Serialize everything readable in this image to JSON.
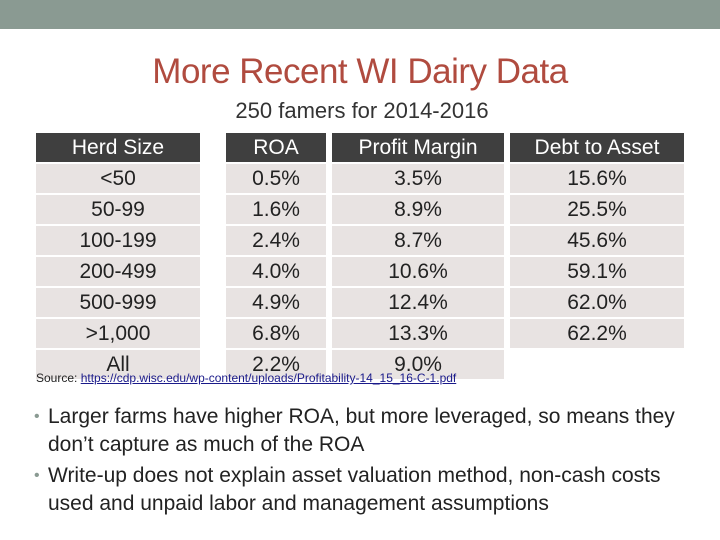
{
  "title": "More Recent WI Dairy Data",
  "subtitle": "250 famers for 2014-2016",
  "table": {
    "headers": [
      "Herd Size",
      "ROA",
      "Profit Margin",
      "Debt to Asset"
    ],
    "rows": [
      [
        "<50",
        "0.5%",
        "3.5%",
        "15.6%"
      ],
      [
        "50-99",
        "1.6%",
        "8.9%",
        "25.5%"
      ],
      [
        "100-199",
        "2.4%",
        "8.7%",
        "45.6%"
      ],
      [
        "200-499",
        "4.0%",
        "10.6%",
        "59.1%"
      ],
      [
        "500-999",
        "4.9%",
        "12.4%",
        "62.0%"
      ],
      [
        ">1,000",
        "6.8%",
        "13.3%",
        "62.2%"
      ],
      [
        "All",
        "2.2%",
        "9.0%",
        ""
      ]
    ]
  },
  "source": {
    "label": "Source:",
    "link_text": "https://cdp.wisc.edu/wp-content/uploads/Profitability-14_15_16-C-1.pdf"
  },
  "bullets": [
    "Larger farms have higher ROA, but more leveraged, so means they don’t capture as much of the ROA",
    "Write-up does not explain asset valuation method, non-cash costs used and unpaid labor and management assumptions"
  ],
  "colors": {
    "title": "#b04b3f",
    "header_bg": "#3f3f3f",
    "row_bg": "#e8e3e2",
    "band": "#8a9a92"
  }
}
